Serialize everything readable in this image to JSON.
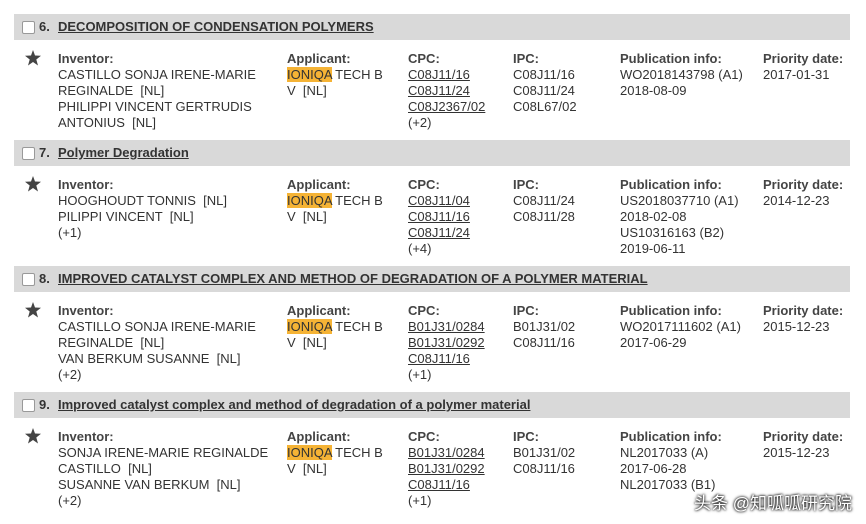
{
  "labels": {
    "inventor": "Inventor:",
    "applicant": "Applicant:",
    "cpc": "CPC:",
    "ipc": "IPC:",
    "pub": "Publication info:",
    "priority": "Priority date:"
  },
  "results": [
    {
      "number": "6.",
      "title": "DECOMPOSITION OF CONDENSATION POLYMERS",
      "inventors": [
        "CASTILLO SONJA IRENE-MARIE",
        "REGINALDE  [NL]",
        "PHILIPPI VINCENT GERTRUDIS",
        "ANTONIUS  [NL]"
      ],
      "applicant": {
        "highlight": "IONIQA",
        "rest": " TECH B",
        "line2": "V  [NL]"
      },
      "cpc": [
        "C08J11/16",
        "C08J11/24",
        "C08J2367/02"
      ],
      "cpc_more": "(+2)",
      "ipc": [
        "C08J11/16",
        "C08J11/24",
        "C08L67/02"
      ],
      "pub": [
        "WO2018143798 (A1)",
        "2018-08-09"
      ],
      "priority": "2017-01-31"
    },
    {
      "number": "7.",
      "title": "Polymer Degradation",
      "inventors": [
        "HOOGHOUDT TONNIS  [NL]",
        "PILIPPI VINCENT  [NL]",
        "(+1)"
      ],
      "applicant": {
        "highlight": "IONIQA",
        "rest": " TECH B",
        "line2": "V  [NL]"
      },
      "cpc": [
        "C08J11/04",
        "C08J11/16",
        "C08J11/24"
      ],
      "cpc_more": "(+4)",
      "ipc": [
        "C08J11/24",
        "C08J11/28"
      ],
      "pub": [
        "US2018037710 (A1)",
        "2018-02-08",
        "US10316163 (B2)",
        "2019-06-11"
      ],
      "priority": "2014-12-23"
    },
    {
      "number": "8.",
      "title": "IMPROVED CATALYST COMPLEX AND METHOD OF DEGRADATION OF A POLYMER MATERIAL",
      "inventors": [
        "CASTILLO SONJA IRENE-MARIE",
        "REGINALDE  [NL]",
        "VAN BERKUM SUSANNE  [NL]",
        "(+2)"
      ],
      "applicant": {
        "highlight": "IONIQA",
        "rest": " TECH B",
        "line2": "V  [NL]"
      },
      "cpc": [
        "B01J31/0284",
        "B01J31/0292",
        "C08J11/16"
      ],
      "cpc_more": "(+1)",
      "ipc": [
        "B01J31/02",
        "C08J11/16"
      ],
      "pub": [
        "WO2017111602 (A1)",
        "2017-06-29"
      ],
      "priority": "2015-12-23"
    },
    {
      "number": "9.",
      "title": "Improved catalyst complex and method of degradation of a polymer material",
      "inventors": [
        "SONJA IRENE-MARIE REGINALDE",
        "CASTILLO  [NL]",
        "SUSANNE VAN BERKUM  [NL]",
        "(+2)"
      ],
      "applicant": {
        "highlight": "IONIQA",
        "rest": " TECH B",
        "line2": "V  [NL]"
      },
      "cpc": [
        "B01J31/0284",
        "B01J31/0292",
        "C08J11/16"
      ],
      "cpc_more": "(+1)",
      "ipc": [
        "B01J31/02",
        "C08J11/16"
      ],
      "pub": [
        "NL2017033 (A)",
        "2017-06-28",
        "NL2017033 (B1)"
      ],
      "priority": "2015-12-23"
    }
  ],
  "watermark": "头条 @知呱呱研究院"
}
